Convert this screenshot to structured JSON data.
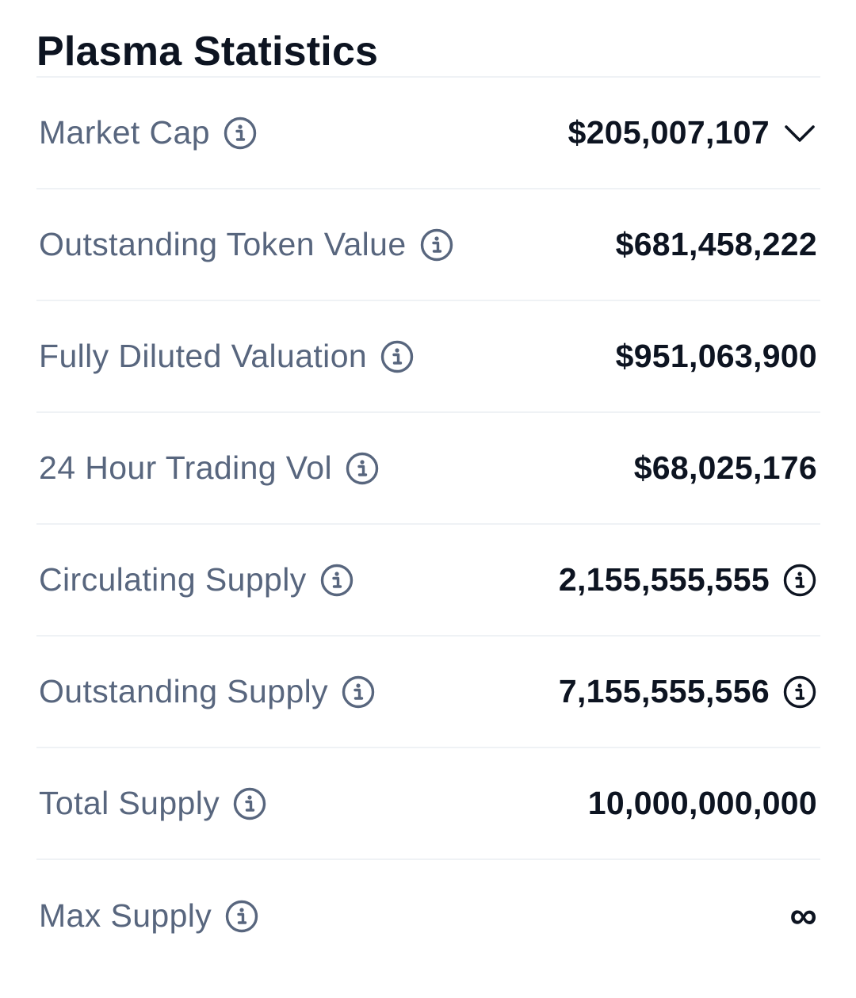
{
  "title": "Plasma Statistics",
  "colors": {
    "label": "#58667e",
    "value": "#0d1421",
    "divider": "#eff2f5"
  },
  "rows": [
    {
      "label": "Market Cap",
      "value": "$205,007,107"
    },
    {
      "label": "Outstanding Token Value",
      "value": "$681,458,222"
    },
    {
      "label": "Fully Diluted Valuation",
      "value": "$951,063,900"
    },
    {
      "label": "24 Hour Trading Vol",
      "value": "$68,025,176"
    },
    {
      "label": "Circulating Supply",
      "value": "2,155,555,555"
    },
    {
      "label": "Outstanding Supply",
      "value": "7,155,555,556"
    },
    {
      "label": "Total Supply",
      "value": "10,000,000,000"
    },
    {
      "label": "Max Supply",
      "value": "∞"
    }
  ],
  "icons": {
    "label_info": "info-icon",
    "value_info": "info-icon",
    "expand": "chevron-down-icon"
  }
}
